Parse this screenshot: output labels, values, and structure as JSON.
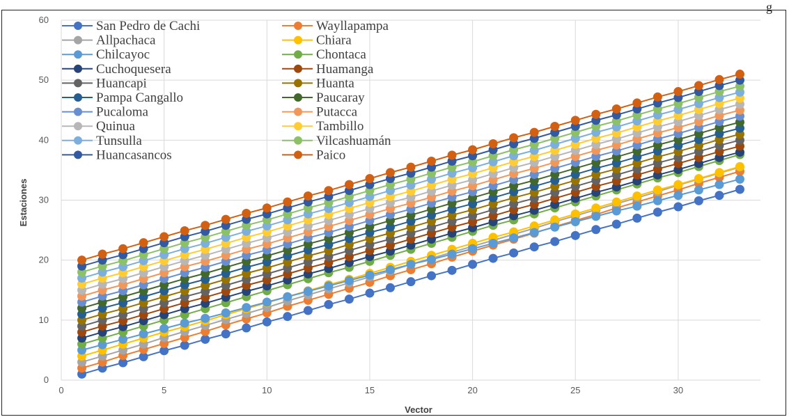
{
  "top_text": "g",
  "chart_data": {
    "type": "line",
    "title": "",
    "xlabel": "Vector",
    "ylabel": "Estaciones",
    "xlim": [
      0,
      34
    ],
    "ylim": [
      0,
      60
    ],
    "x_ticks": [
      "0",
      "5",
      "10",
      "15",
      "20",
      "25",
      "30"
    ],
    "y_ticks": [
      "0",
      "10",
      "20",
      "30",
      "40",
      "50",
      "60"
    ],
    "grid": true,
    "legend_position": "top-left",
    "x": [
      1,
      2,
      3,
      4,
      5,
      6,
      7,
      8,
      9,
      10,
      11,
      12,
      13,
      14,
      15,
      16,
      17,
      18,
      19,
      20,
      21,
      22,
      23,
      24,
      25,
      26,
      27,
      28,
      29,
      30,
      31,
      32,
      33
    ],
    "series": [
      {
        "name": "San Pedro de Cachi",
        "color": "#4472C4",
        "start": 1
      },
      {
        "name": "Wayllapampa",
        "color": "#ED7D31",
        "start": 2
      },
      {
        "name": "Allpachaca",
        "color": "#A5A5A5",
        "start": 3
      },
      {
        "name": "Chiara",
        "color": "#FFC000",
        "start": 4
      },
      {
        "name": "Chilcayoc",
        "color": "#5B9BD5",
        "start": 5
      },
      {
        "name": "Chontaca",
        "color": "#70AD47",
        "start": 6
      },
      {
        "name": "Cuchoquesera",
        "color": "#264478",
        "start": 7
      },
      {
        "name": "Huamanga",
        "color": "#9E480E",
        "start": 8
      },
      {
        "name": "Huancapi",
        "color": "#636363",
        "start": 9
      },
      {
        "name": "Huanta",
        "color": "#997300",
        "start": 10
      },
      {
        "name": "Pampa Cangallo",
        "color": "#255E91",
        "start": 11
      },
      {
        "name": "Paucaray",
        "color": "#43682B",
        "start": 12
      },
      {
        "name": "Pucaloma",
        "color": "#698ED0",
        "start": 13
      },
      {
        "name": "Putacca",
        "color": "#F1975A",
        "start": 14
      },
      {
        "name": "Quinua",
        "color": "#B7B7B7",
        "start": 15
      },
      {
        "name": "Tambillo",
        "color": "#FFCD33",
        "start": 16
      },
      {
        "name": "Tunsulla",
        "color": "#7CAFDD",
        "start": 17
      },
      {
        "name": "Vilcashuamán",
        "color": "#8CC168",
        "start": 18
      },
      {
        "name": "Huancasancos",
        "color": "#335AA1",
        "start": 19
      },
      {
        "name": "Paico",
        "color": "#D26012",
        "start": 20
      }
    ],
    "slope": 0.97,
    "tail": [
      {
        "idx": 0,
        "end": 31.8
      },
      {
        "idx": 1,
        "end": 34.8
      },
      {
        "idx": 2,
        "end": 35.5
      },
      {
        "idx": 3,
        "end": 35.6
      },
      {
        "idx": 4,
        "end": 33.5
      },
      {
        "idx": 5,
        "end": 37.6
      }
    ]
  }
}
